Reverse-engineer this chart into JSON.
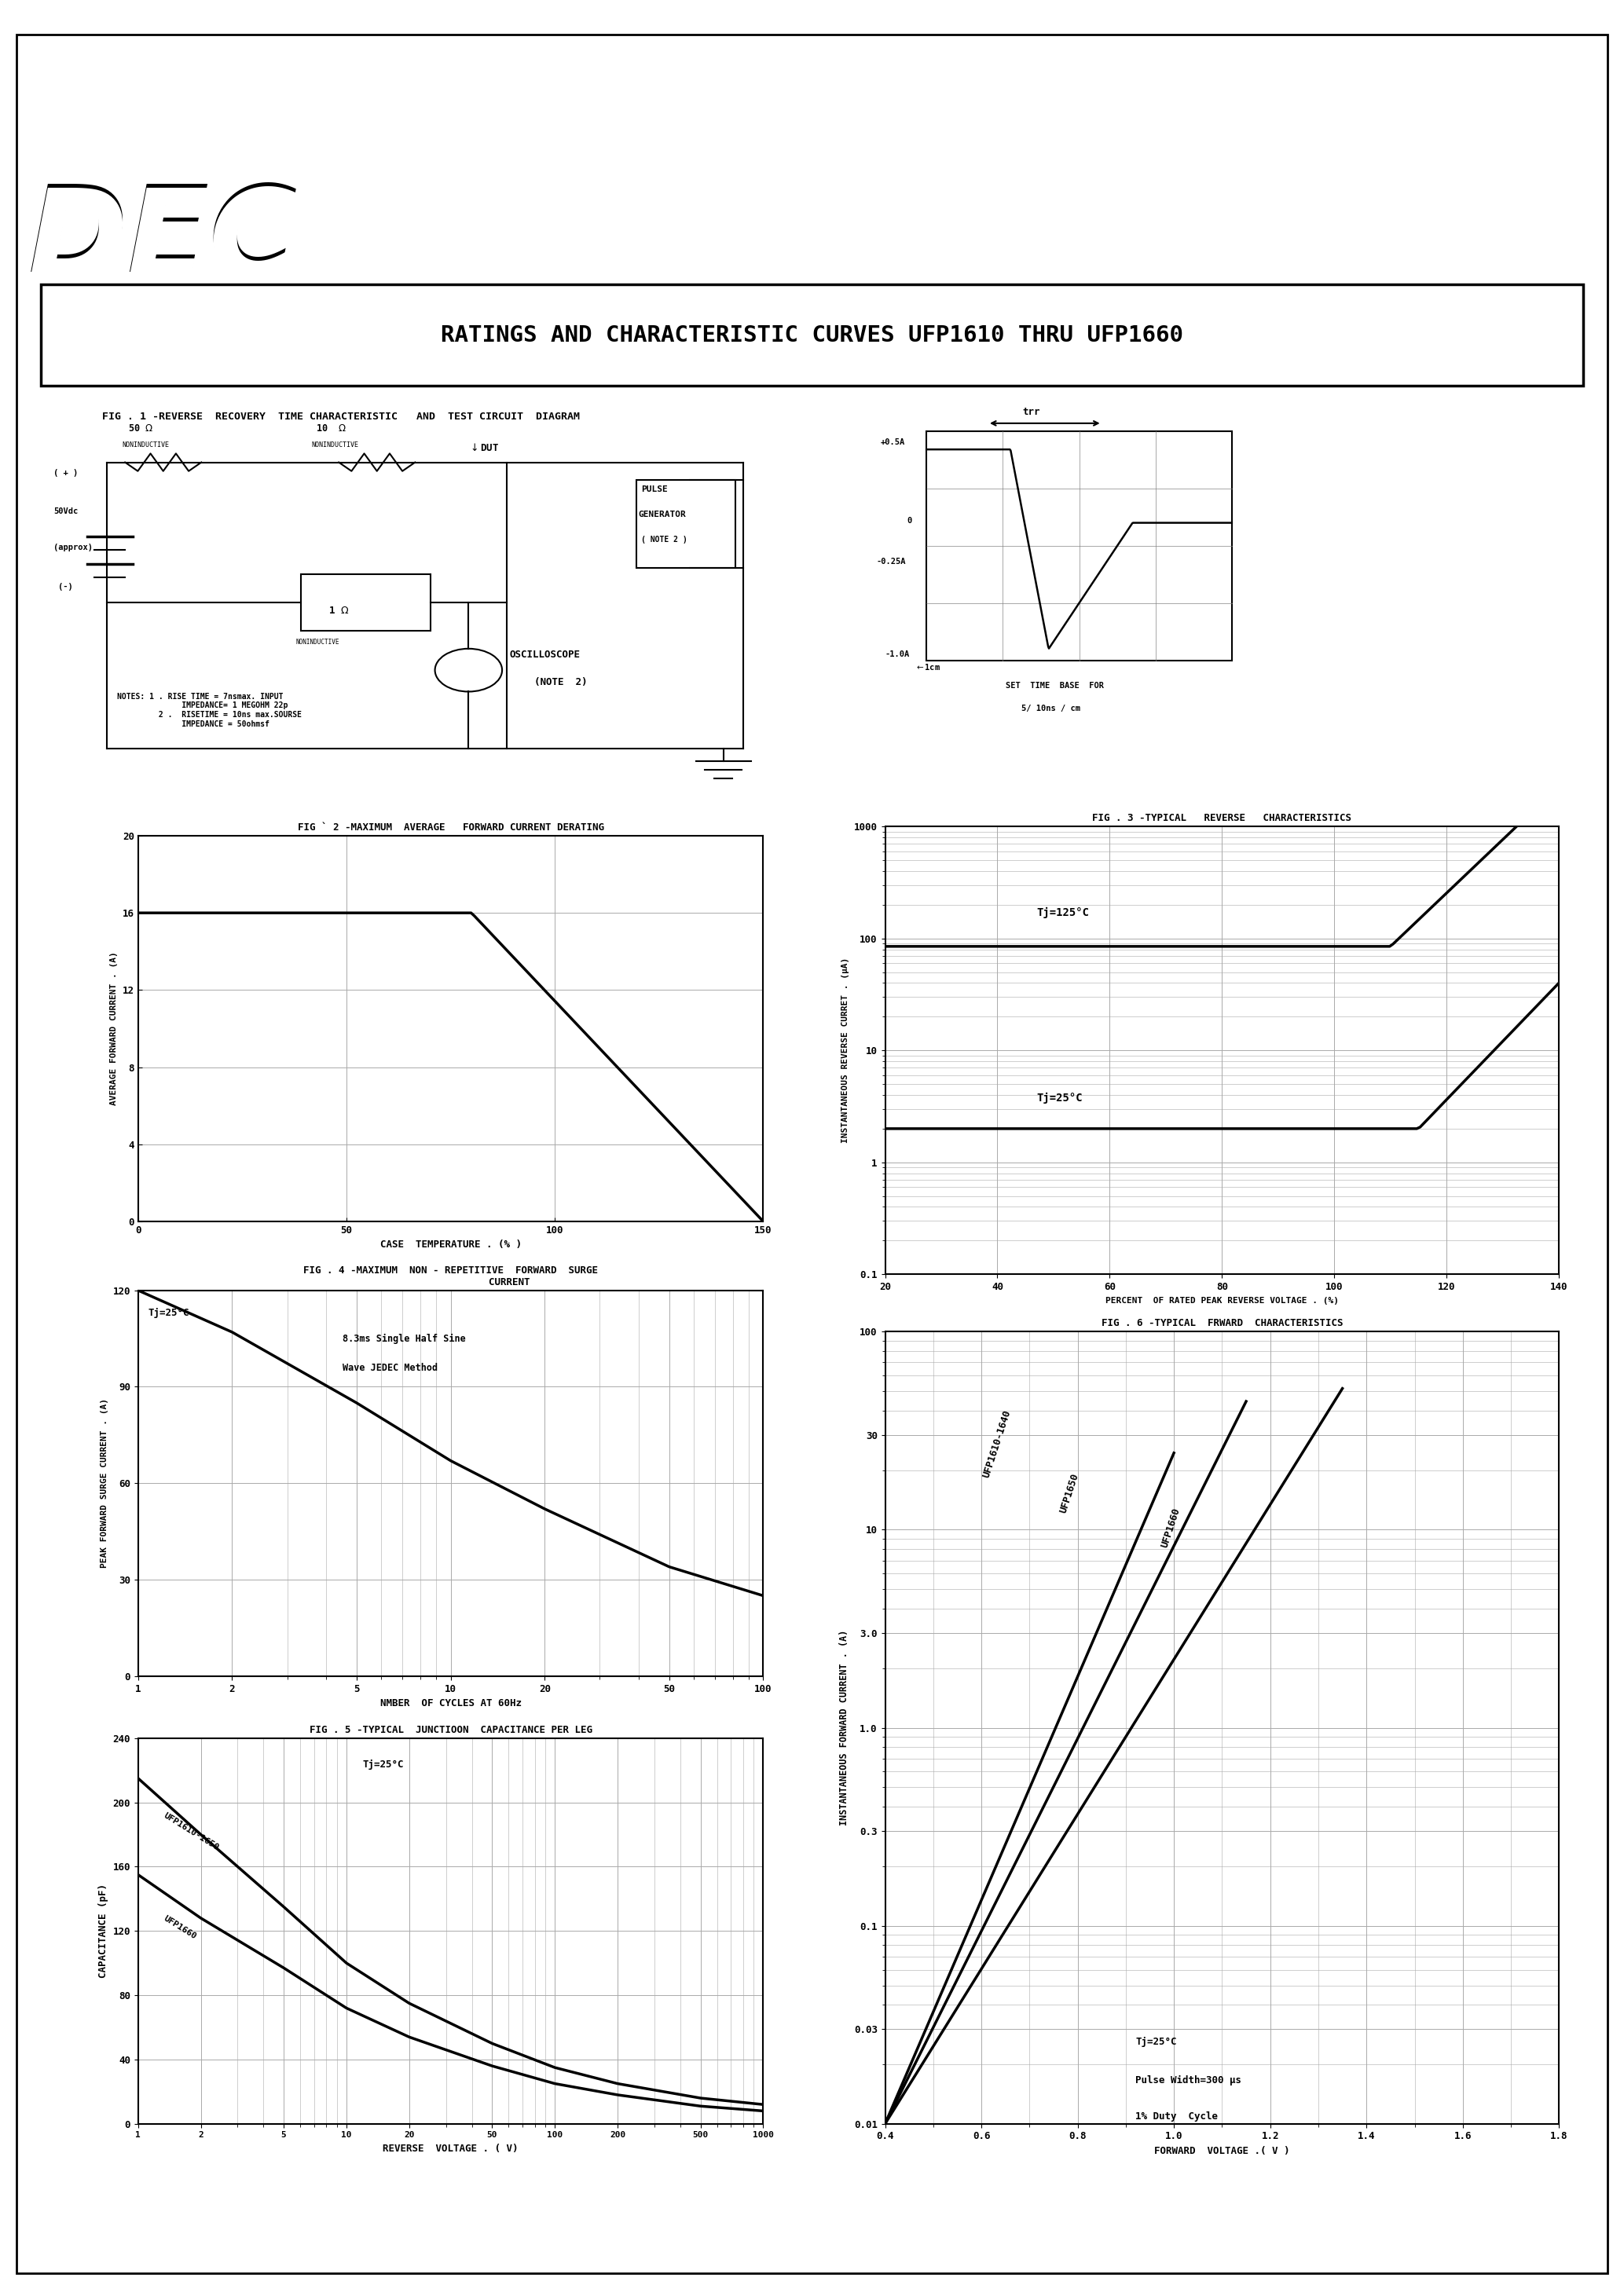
{
  "page_bg": "#ffffff",
  "header_bg": "#1a1a1a",
  "grid_color": "#aaaaaa",
  "title_text": "RATINGS AND CHARACTERISTIC CURVES UFP1610 THRU UFP1660",
  "dec_logo": "DEC",
  "fig1_title": "FIG . 1 -REVERSE  RECOVERY  TIME CHARACTERISTIC   AND  TEST CIRCUIT  DIAGRAM",
  "fig2_title": "FIG ` 2 -MAXIMUM  AVERAGE   FORWARD CURRENT DERATING",
  "fig3_title": "FIG . 3 -TYPICAL   REVERSE   CHARACTERISTICS",
  "fig4_title": "FIG . 4 -MAXIMUM  NON - REPETITIVE  FORWARD  SURGE\n                    CURRENT",
  "fig5_title": "FIG . 5 -TYPICAL  JUNCTIOON  CAPACITANCE PER LEG",
  "fig6_title": "FIG . 6 -TYPICAL  FRWARD  CHARACTERISTICS",
  "notes_text": "NOTES: 1 . RISE TIME = 7nsmax. INPUT\n              IMPEDANCE= 1 MEGOHM 22p\n         2 .  RISETIME = 10ns max.SOURSE\n              IMPEDANCE = 50ohmsf",
  "fig2_xlabel": "CASE  TEMPERATURE . (% )",
  "fig2_ylabel": "AVERAGE FORWARD CURRENT . (A)",
  "fig3_xlabel": "PERCENT  OF RATED PEAK REVERSE VOLTAGE . (%)",
  "fig3_ylabel": "INSTANTANEOUS REVERSE CURRET . (μA)",
  "fig4_xlabel": "NMBER  OF CYCLES AT 60Hz",
  "fig4_ylabel": "PEAK FORWARD SURGE CURRENT . (A)",
  "fig5_xlabel": "REVERSE  VOLTAGE . ( V)",
  "fig5_ylabel": "CAPACITANCE (pF)",
  "fig6_xlabel": "FORWARD  VOLTAGE .( V )",
  "fig6_ylabel": "INSTANTANEOUS FORWARD CURRENT . (A)"
}
